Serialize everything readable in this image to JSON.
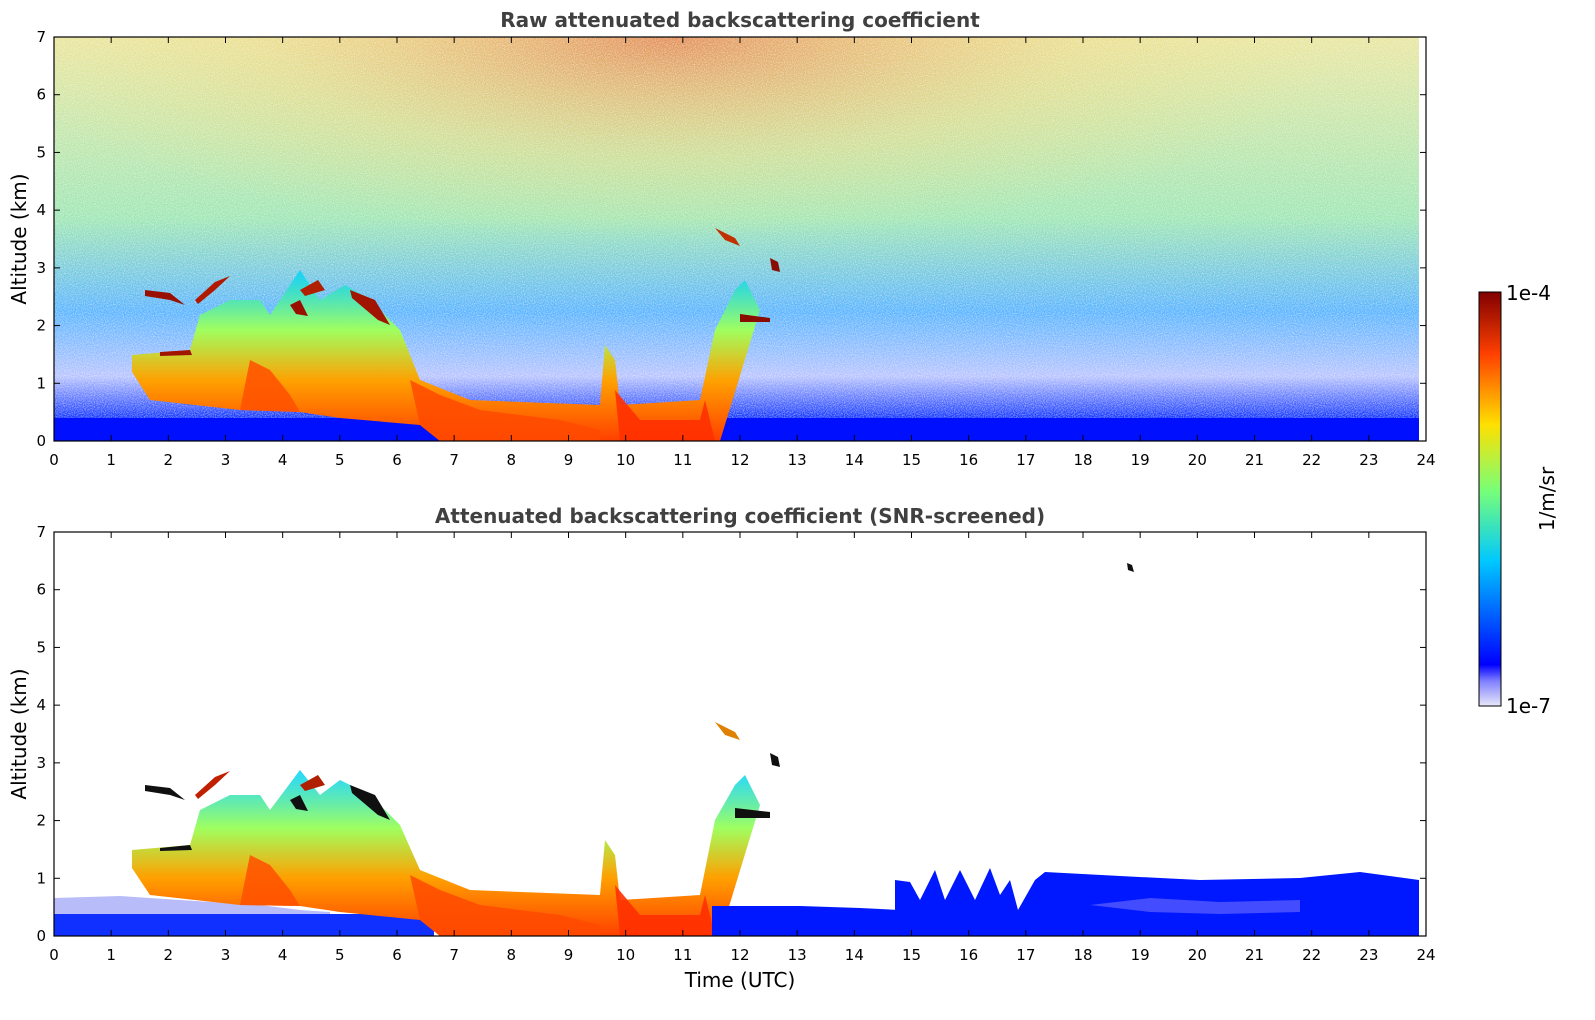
{
  "chart_data": [
    {
      "type": "heatmap",
      "title": "Raw attenuated backscattering coefficient",
      "xlabel": "",
      "ylabel": "Altitude (km)",
      "xlim": [
        0,
        24
      ],
      "ylim": [
        0,
        7
      ],
      "xticks": [
        0,
        1,
        2,
        3,
        4,
        5,
        6,
        7,
        8,
        9,
        10,
        11,
        12,
        13,
        14,
        15,
        16,
        17,
        18,
        19,
        20,
        21,
        22,
        23,
        24
      ],
      "yticks": [
        0,
        1,
        2,
        3,
        4,
        5,
        6,
        7
      ],
      "screened": false
    },
    {
      "type": "heatmap",
      "title": "Attenuated backscattering coefficient (SNR-screened)",
      "xlabel": "Time (UTC)",
      "ylabel": "Altitude (km)",
      "xlim": [
        0,
        24
      ],
      "ylim": [
        0,
        7
      ],
      "xticks": [
        0,
        1,
        2,
        3,
        4,
        5,
        6,
        7,
        8,
        9,
        10,
        11,
        12,
        13,
        14,
        15,
        16,
        17,
        18,
        19,
        20,
        21,
        22,
        23,
        24
      ],
      "yticks": [
        0,
        1,
        2,
        3,
        4,
        5,
        6,
        7
      ],
      "screened": true
    }
  ],
  "colorbar": {
    "label": "1/m/sr",
    "max_label": "1e-4",
    "min_label": "1e-7",
    "scale": "log",
    "range": [
      1e-07,
      0.0001
    ],
    "colormap": "jet",
    "colors": [
      "#e8e8f8",
      "#0000ff",
      "#00c8ff",
      "#78ff78",
      "#ffe000",
      "#ff4000",
      "#800000"
    ]
  }
}
